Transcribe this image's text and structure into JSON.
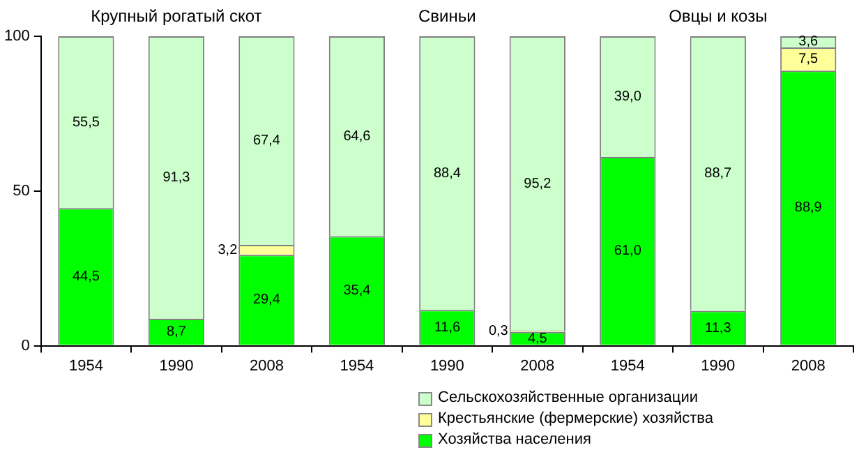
{
  "chart_data": {
    "type": "bar",
    "stacked": true,
    "categories": [
      "1954",
      "1990",
      "2008",
      "1954",
      "1990",
      "2008",
      "1954",
      "1990",
      "2008"
    ],
    "series": [
      {
        "name": "Хозяйства населения",
        "color": "#00ff00",
        "values": [
          44.5,
          8.7,
          29.4,
          35.4,
          11.6,
          4.5,
          61.0,
          11.3,
          88.9
        ],
        "value_labels": [
          "44,5",
          "8,7",
          "29,4",
          "35,4",
          "11,6",
          "4,5",
          "61,0",
          "11,3",
          "88,9"
        ]
      },
      {
        "name": "Крестьянские (фермерские) хозяйства",
        "color": "#ffff99",
        "values": [
          null,
          null,
          3.2,
          null,
          null,
          0.3,
          null,
          null,
          7.5
        ],
        "value_labels": [
          null,
          null,
          "3,2",
          null,
          null,
          "0,3",
          null,
          null,
          "7,5"
        ]
      },
      {
        "name": "Сельскохозяйственные организации",
        "color": "#ccffcc",
        "values": [
          55.5,
          91.3,
          67.4,
          64.6,
          88.4,
          95.2,
          39.0,
          88.7,
          3.6
        ],
        "value_labels": [
          "55,5",
          "91,3",
          "67,4",
          "64,6",
          "88,4",
          "95,2",
          "39,0",
          "88,7",
          "3,6"
        ]
      }
    ],
    "ylim": [
      0,
      100
    ],
    "yticks": [
      0,
      50,
      100
    ],
    "grid": false,
    "legend": "bottom",
    "annotations": [
      "Крупный рогатый скот",
      "Свиньи",
      "Овцы и козы"
    ]
  }
}
